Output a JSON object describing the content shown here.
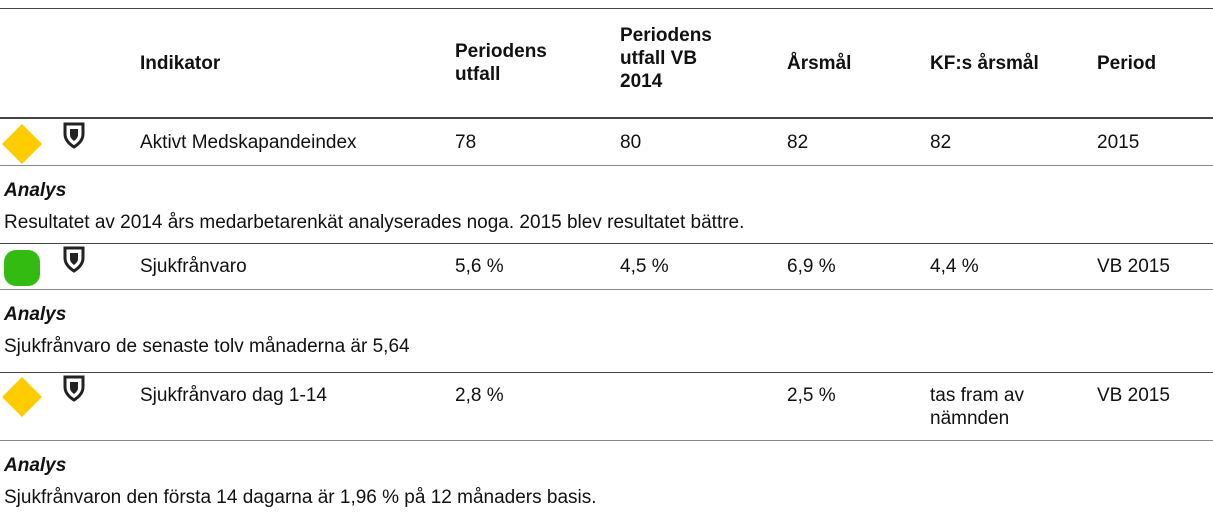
{
  "header": {
    "columns": [
      "Indikator",
      "Periodens utfall",
      "Periodens utfall VB 2014",
      "Årsmål",
      "KF:s årsmål",
      "Period"
    ]
  },
  "rows": [
    {
      "indicator": "Aktivt Medskapandeindex",
      "outcome": "78",
      "outcome_vb_2014": "80",
      "annual_goal": "82",
      "kf_annual_goal": "82",
      "period": "2015",
      "analysis_label": "Analys",
      "analysis": "Resultatet av 2014 års medarbetarenkät analyserades noga. 2015 blev resultatet bättre."
    },
    {
      "indicator": "Sjukfrånvaro",
      "outcome": "5,6 %",
      "outcome_vb_2014": "4,5 %",
      "annual_goal": "6,9 %",
      "kf_annual_goal": "4,4 %",
      "period": "VB 2015",
      "analysis_label": "Analys",
      "analysis": "Sjukfrånvaro de senaste tolv månaderna är 5,64"
    },
    {
      "indicator": "Sjukfrånvaro dag 1-14",
      "outcome": "2,8 %",
      "annual_goal": "2,5 %",
      "kf_annual_goal": "tas fram av nämnden",
      "period": "VB 2015",
      "analysis_label": "Analys",
      "analysis": "Sjukfrånvaron den första 14 dagarna är 1,96 % på 12 månaders basis."
    }
  ]
}
